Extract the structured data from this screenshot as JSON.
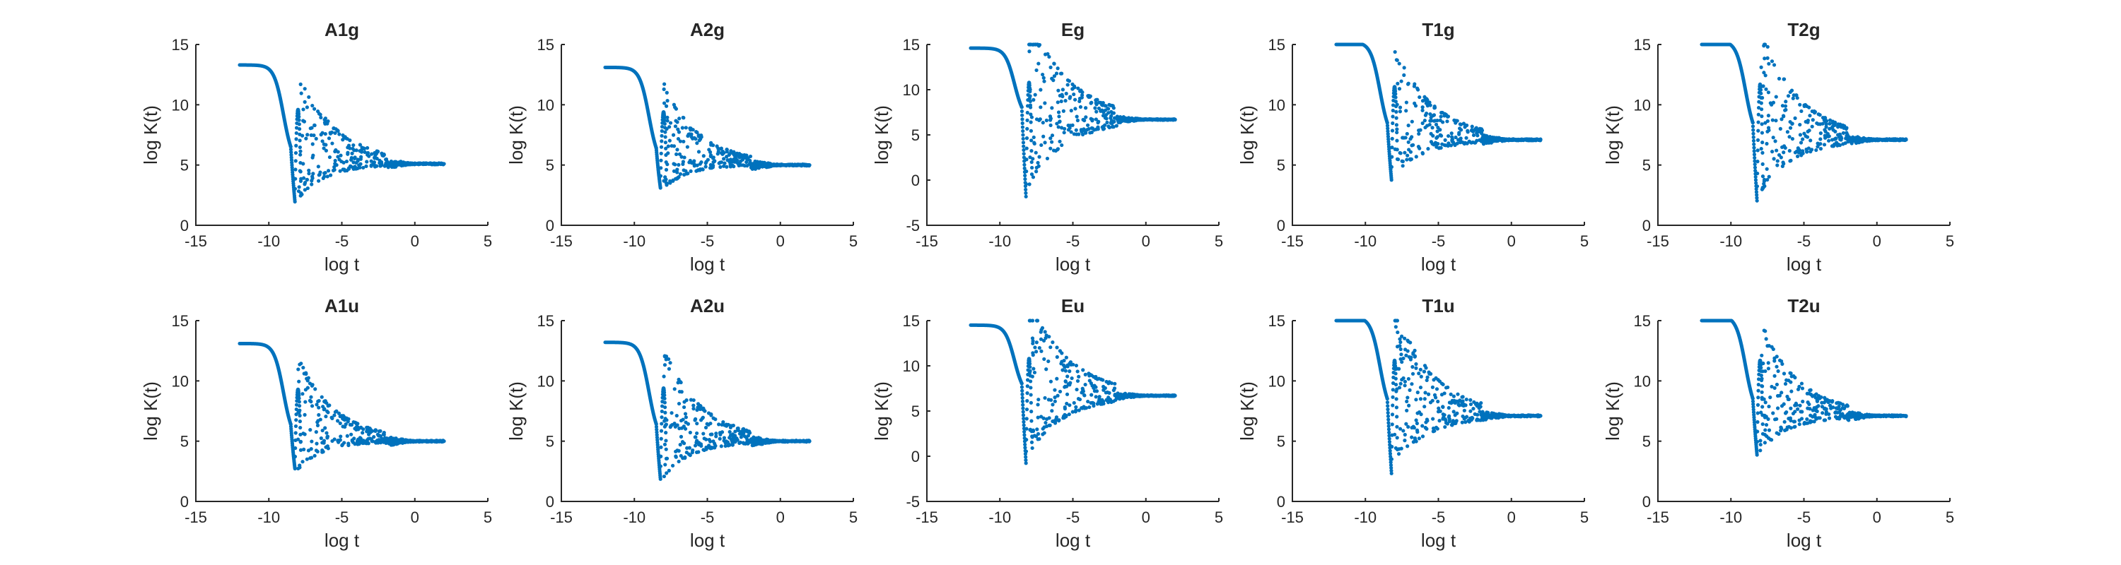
{
  "style": {
    "marker_color": "#0072BD",
    "axis_color": "#262626",
    "background": "#ffffff"
  },
  "chart_data": [
    {
      "type": "scatter",
      "title": "A1g",
      "xlabel": "log t",
      "ylabel": "log K(t)",
      "xlim": [
        -15,
        5
      ],
      "ylim": [
        0,
        15
      ],
      "xticks": [
        -15,
        -10,
        -5,
        0,
        5
      ],
      "yticks": [
        0,
        5,
        10,
        15
      ],
      "plateau": 13.3,
      "final": 5.1,
      "firstPeak": 9.6,
      "scatterLow": 0.3
    },
    {
      "type": "scatter",
      "title": "A2g",
      "xlabel": "log t",
      "ylabel": "log K(t)",
      "xlim": [
        -15,
        5
      ],
      "ylim": [
        0,
        15
      ],
      "xticks": [
        -15,
        -10,
        -5,
        0,
        5
      ],
      "yticks": [
        0,
        5,
        10,
        15
      ],
      "plateau": 13.1,
      "final": 5.0,
      "firstPeak": 9.4,
      "scatterLow": 1.5
    },
    {
      "type": "scatter",
      "title": "Eg",
      "xlabel": "log t",
      "ylabel": "log K(t)",
      "xlim": [
        -15,
        5
      ],
      "ylim": [
        -5,
        15
      ],
      "xticks": [
        -15,
        -10,
        -5,
        0,
        5
      ],
      "yticks": [
        -5,
        0,
        5,
        10,
        15
      ],
      "plateau": 14.6,
      "final": 6.7,
      "firstPeak": 10.8,
      "scatterLow": -3.7
    },
    {
      "type": "scatter",
      "title": "T1g",
      "xlabel": "log t",
      "ylabel": "log K(t)",
      "xlim": [
        -15,
        5
      ],
      "ylim": [
        0,
        15
      ],
      "xticks": [
        -15,
        -10,
        -5,
        0,
        5
      ],
      "yticks": [
        0,
        5,
        10,
        15
      ],
      "plateau": 15.2,
      "final": 7.1,
      "firstPeak": 11.5,
      "scatterLow": 2.1
    },
    {
      "type": "scatter",
      "title": "T2g",
      "xlabel": "log t",
      "ylabel": "log K(t)",
      "xlim": [
        -15,
        5
      ],
      "ylim": [
        0,
        15
      ],
      "xticks": [
        -15,
        -10,
        -5,
        0,
        5
      ],
      "yticks": [
        0,
        5,
        10,
        15
      ],
      "plateau": 15.3,
      "final": 7.1,
      "firstPeak": 11.7,
      "scatterLow": 0.3
    },
    {
      "type": "scatter",
      "title": "A1u",
      "xlabel": "log t",
      "ylabel": "log K(t)",
      "xlim": [
        -15,
        5
      ],
      "ylim": [
        0,
        15
      ],
      "xticks": [
        -15,
        -10,
        -5,
        0,
        5
      ],
      "yticks": [
        0,
        5,
        10,
        15
      ],
      "plateau": 13.1,
      "final": 5.0,
      "firstPeak": 9.3,
      "scatterLow": 1.1
    },
    {
      "type": "scatter",
      "title": "A2u",
      "xlabel": "log t",
      "ylabel": "log K(t)",
      "xlim": [
        -15,
        5
      ],
      "ylim": [
        0,
        15
      ],
      "xticks": [
        -15,
        -10,
        -5,
        0,
        5
      ],
      "yticks": [
        0,
        5,
        10,
        15
      ],
      "plateau": 13.2,
      "final": 5.0,
      "firstPeak": 9.4,
      "scatterLow": 0.2
    },
    {
      "type": "scatter",
      "title": "Eu",
      "xlabel": "log t",
      "ylabel": "log K(t)",
      "xlim": [
        -15,
        5
      ],
      "ylim": [
        -5,
        15
      ],
      "xticks": [
        -15,
        -10,
        -5,
        0,
        5
      ],
      "yticks": [
        -5,
        0,
        5,
        10,
        15
      ],
      "plateau": 14.5,
      "final": 6.7,
      "firstPeak": 10.8,
      "scatterLow": -2.6
    },
    {
      "type": "scatter",
      "title": "T1u",
      "xlabel": "log t",
      "ylabel": "log K(t)",
      "xlim": [
        -15,
        5
      ],
      "ylim": [
        0,
        15
      ],
      "xticks": [
        -15,
        -10,
        -5,
        0,
        5
      ],
      "yticks": [
        0,
        5,
        10,
        15
      ],
      "plateau": 15.3,
      "final": 7.1,
      "firstPeak": 11.7,
      "scatterLow": 0.6
    },
    {
      "type": "scatter",
      "title": "T2u",
      "xlabel": "log t",
      "ylabel": "log K(t)",
      "xlim": [
        -15,
        5
      ],
      "ylim": [
        0,
        15
      ],
      "xticks": [
        -15,
        -10,
        -5,
        0,
        5
      ],
      "yticks": [
        0,
        5,
        10,
        15
      ],
      "plateau": 15.4,
      "final": 7.1,
      "firstPeak": 11.7,
      "scatterLow": 2.2
    }
  ]
}
